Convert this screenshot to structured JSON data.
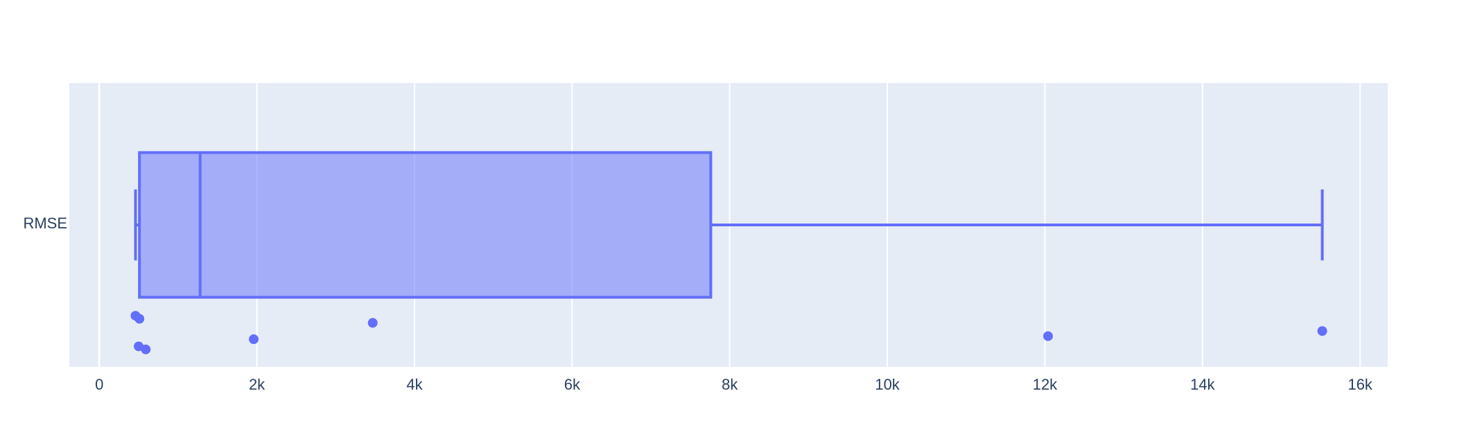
{
  "chart_data": {
    "type": "box",
    "title": "",
    "xlabel": "",
    "ylabel": "",
    "orientation": "horizontal",
    "category": "RMSE",
    "xlim": [
      -380,
      16350
    ],
    "x_ticks": [
      0,
      2000,
      4000,
      6000,
      8000,
      10000,
      12000,
      14000,
      16000
    ],
    "x_tick_labels": [
      "0",
      "2k",
      "4k",
      "6k",
      "8k",
      "10k",
      "12k",
      "14k",
      "16k"
    ],
    "grid": true,
    "legend": "none",
    "box": {
      "lower_fence": 460,
      "q1": 510,
      "median": 1280,
      "q3": 7760,
      "upper_fence": 15520
    },
    "points": [
      {
        "x": 460,
        "jitter": 0.44
      },
      {
        "x": 510,
        "jitter": 0.47
      },
      {
        "x": 500,
        "jitter": 0.74
      },
      {
        "x": 590,
        "jitter": 0.77
      },
      {
        "x": 1960,
        "jitter": 0.67
      },
      {
        "x": 3470,
        "jitter": 0.51
      },
      {
        "x": 12040,
        "jitter": 0.64
      },
      {
        "x": 15520,
        "jitter": 0.59
      }
    ],
    "colors": {
      "box_line": "#636efa",
      "box_fill": "rgba(99,110,250,0.5)",
      "point": "#636efa",
      "plot_bg": "#e5ecf6",
      "grid": "#ffffff",
      "text": "#2a3f5f"
    }
  }
}
